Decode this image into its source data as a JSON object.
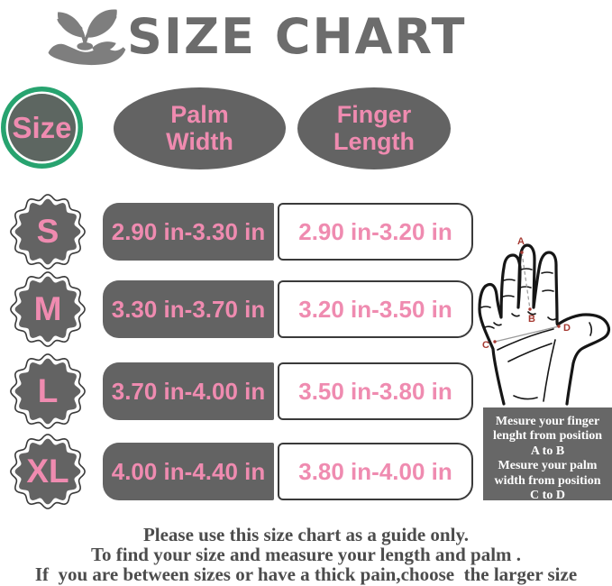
{
  "colors": {
    "gray": "#636363",
    "dark": "#3a3a3a",
    "pink": "#ef8bb0",
    "green": "#27a36f",
    "circlefill": "#5d6661",
    "titlegray": "#6c6c6c",
    "textdark": "#4c4c4c",
    "red": "#a63a32",
    "boxgray": "#676767",
    "logogray": "#7e7e7e"
  },
  "header": {
    "title": "SIZE CHART",
    "logo_icon": "hand-holding-plant"
  },
  "columns": {
    "size": "Size",
    "palm_line1": "Palm",
    "palm_line2": "Width",
    "finger_line1": "Finger",
    "finger_line2": "Length"
  },
  "rows": [
    {
      "size": "S",
      "palm_width": "2.90 in-3.30 in",
      "finger_length": "2.90 in-3.20 in"
    },
    {
      "size": "M",
      "palm_width": "3.30 in-3.70 in",
      "finger_length": "3.20 in-3.50 in"
    },
    {
      "size": "L",
      "palm_width": "3.70 in-4.00 in",
      "finger_length": "3.50 in-3.80 in"
    },
    {
      "size": "XL",
      "palm_width": "4.00 in-4.40 in",
      "finger_length": "3.80 in-4.00 in"
    }
  ],
  "hand": {
    "labels": {
      "a": "A",
      "b": "B",
      "c": "C",
      "d": "D"
    }
  },
  "instructions": {
    "lines": [
      "Mesure your finger",
      "lenght from position",
      "A to B",
      "Mesure your palm",
      "width from position",
      "C to D"
    ]
  },
  "footer": {
    "lines": [
      "Please use this size chart as a guide only.",
      "To find your size and measure your length and palm .",
      "If  you are between sizes or have a thick pain,choose  the larger size"
    ]
  },
  "chart_data": {
    "type": "table",
    "title": "SIZE CHART",
    "columns": [
      "Size",
      "Palm Width",
      "Finger Length"
    ],
    "rows": [
      [
        "S",
        "2.90 in-3.30 in",
        "2.90 in-3.20 in"
      ],
      [
        "M",
        "3.30 in-3.70 in",
        "3.20 in-3.50 in"
      ],
      [
        "L",
        "3.70 in-4.00 in",
        "3.50 in-3.80 in"
      ],
      [
        "XL",
        "4.00 in-4.40 in",
        "3.80 in-4.00 in"
      ]
    ],
    "notes": "Measure finger length from position A to B and palm width from position C to D on the hand diagram."
  }
}
